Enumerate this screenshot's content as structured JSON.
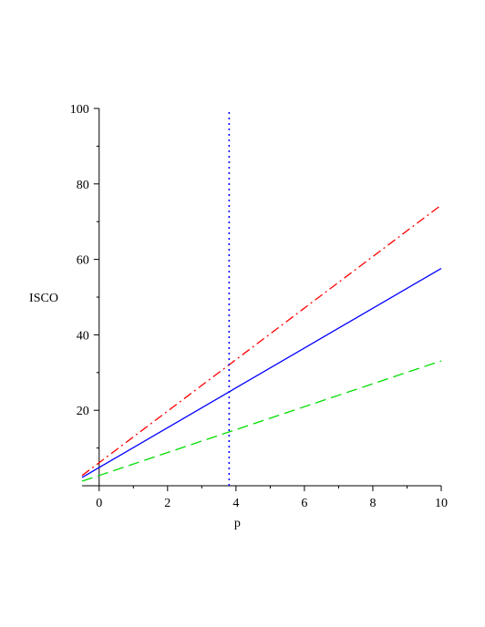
{
  "chart_data": {
    "type": "line",
    "title": "",
    "xlabel": "p",
    "ylabel": "ISCO",
    "xlim": [
      -0.5,
      10
    ],
    "ylim": [
      0,
      100
    ],
    "x_ticks": [
      0,
      2,
      4,
      6,
      8,
      10
    ],
    "y_ticks": [
      20,
      40,
      60,
      80,
      100
    ],
    "x_tick_labels": [
      "0",
      "2",
      "4",
      "6",
      "8",
      "10"
    ],
    "y_tick_labels": [
      "20",
      "40",
      "60",
      "80",
      "100"
    ],
    "grid": false,
    "legend": "none",
    "series": [
      {
        "style": "dash-dot",
        "color": "#ff0000",
        "x": [
          -0.5,
          10
        ],
        "y": [
          2.7,
          74.4
        ]
      },
      {
        "style": "solid",
        "color": "#0000ff",
        "x": [
          -0.5,
          10
        ],
        "y": [
          2.2,
          57.6
        ]
      },
      {
        "style": "dashed",
        "color": "#00dd00",
        "x": [
          -0.5,
          10
        ],
        "y": [
          1.2,
          33.1
        ]
      },
      {
        "style": "dotted",
        "color": "#0000ff",
        "x": [
          3.8,
          3.8
        ],
        "y": [
          0,
          100
        ]
      }
    ]
  }
}
